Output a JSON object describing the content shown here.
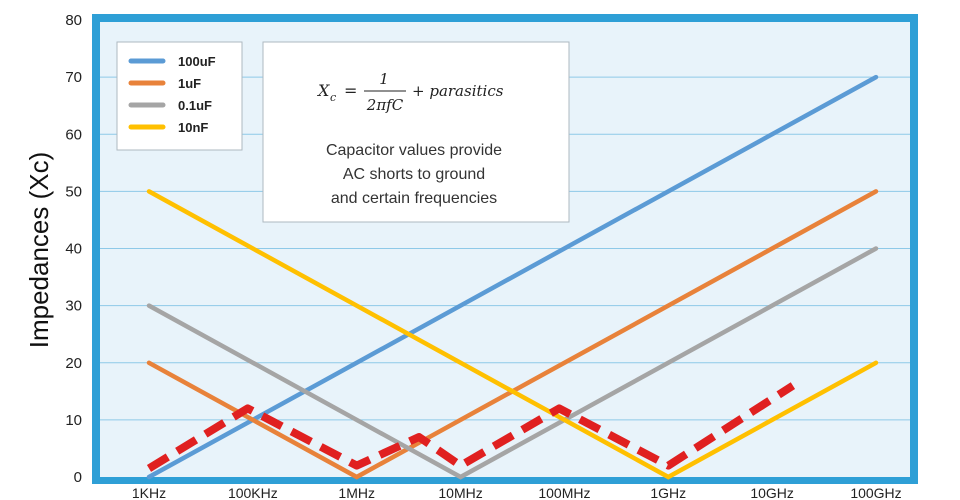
{
  "chart_data": {
    "type": "line",
    "title": "",
    "xlabel": "",
    "ylabel": "Impedances (Xc)",
    "ylim": [
      0,
      80
    ],
    "y_ticks": [
      0,
      10,
      20,
      30,
      40,
      50,
      60,
      70,
      80
    ],
    "x": [
      "1KHz",
      "100KHz",
      "1MHz",
      "10MHz",
      "100MHz",
      "1GHz",
      "10GHz",
      "100GHz"
    ],
    "grid": true,
    "legend_position": "top-left",
    "colors": {
      "frame": "#2e9fd6",
      "plot_background": "#e8f3fa",
      "grid": "#8ec9e8",
      "dashed": "#e02020"
    },
    "series": [
      {
        "name": "100uF",
        "color": "#5b9bd5",
        "points": [
          [
            "1KHz",
            0
          ],
          [
            "100GHz",
            70
          ]
        ]
      },
      {
        "name": "1uF",
        "color": "#e8823a",
        "points": [
          [
            "1KHz",
            20
          ],
          [
            "1MHz",
            0
          ],
          [
            "100GHz",
            50
          ]
        ]
      },
      {
        "name": "0.1uF",
        "color": "#a5a5a5",
        "points": [
          [
            "1KHz",
            30
          ],
          [
            "10MHz",
            0
          ],
          [
            "100GHz",
            40
          ]
        ]
      },
      {
        "name": "10nF",
        "color": "#ffc000",
        "points": [
          [
            "1KHz",
            50
          ],
          [
            "1GHz",
            0
          ],
          [
            "100GHz",
            20
          ]
        ]
      }
    ],
    "combined_curve": {
      "style": "dashed",
      "color": "#e02020",
      "points": [
        [
          0.0,
          1.5
        ],
        [
          0.95,
          12
        ],
        [
          2.0,
          2
        ],
        [
          2.6,
          7
        ],
        [
          3.0,
          2
        ],
        [
          3.95,
          12
        ],
        [
          5.0,
          2
        ],
        [
          6.2,
          16
        ]
      ]
    },
    "annotation": {
      "formula_lhs": "X",
      "formula_sub": "c",
      "formula_eq": "=",
      "formula_num": "1",
      "formula_den": "2πfC",
      "formula_plus": "+ parasitics",
      "text_lines": [
        "Capacitor values provide",
        "AC shorts to ground",
        "and certain frequencies"
      ]
    }
  }
}
